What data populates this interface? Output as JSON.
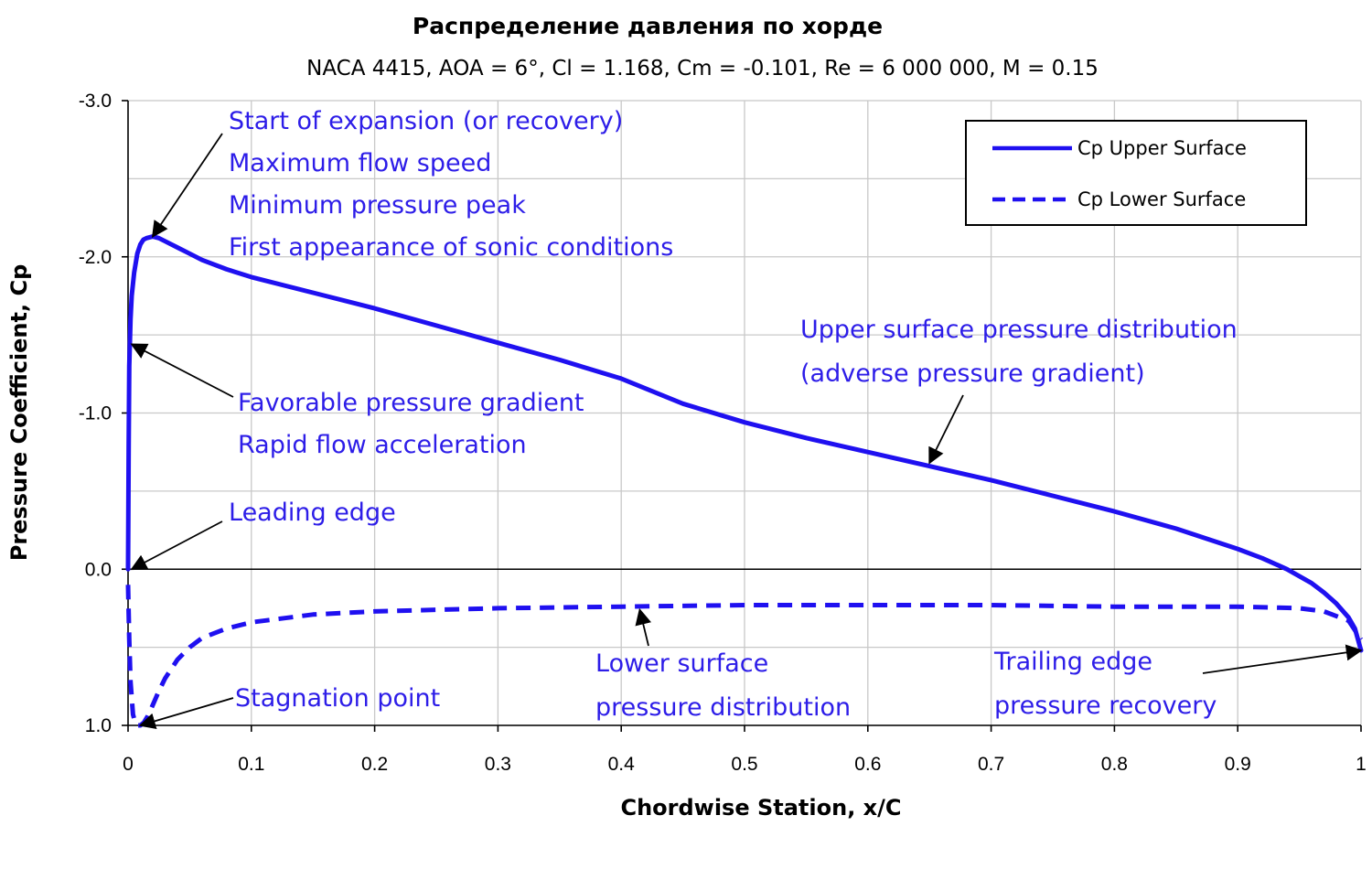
{
  "colors": {
    "series": "#1f10f0",
    "annotation_text": "#2d1de8",
    "grid": "#c8c8c8",
    "axis": "#000000"
  },
  "chart_data": {
    "type": "line",
    "title": "Распределение давления по хорде",
    "subtitle": "NACA 4415, AOA = 6°, Cl = 1.168,  Cm = -0.101,  Re = 6 000  000,  M = 0.15",
    "xlabel": "Chordwise Station, x/C",
    "ylabel": "Pressure Coefficient, Cp",
    "xlim": [
      0,
      1
    ],
    "ylim": [
      1.0,
      -3.0
    ],
    "y_inverted": true,
    "grid": true,
    "x_ticks": [
      "0",
      "0.1",
      "0.2",
      "0.3",
      "0.4",
      "0.5",
      "0.6",
      "0.7",
      "0.8",
      "0.9",
      "1"
    ],
    "y_ticks": [
      "-3.0",
      "-2.0",
      "-1.0",
      "0.0",
      "1.0"
    ],
    "legend_position": "top-right",
    "series": [
      {
        "name": "Cp Upper Surface",
        "style": "solid",
        "x": [
          0.0,
          0.0005,
          0.001,
          0.002,
          0.003,
          0.005,
          0.0075,
          0.01,
          0.0125,
          0.015,
          0.02,
          0.025,
          0.03,
          0.04,
          0.05,
          0.06,
          0.08,
          0.1,
          0.15,
          0.2,
          0.25,
          0.3,
          0.35,
          0.4,
          0.45,
          0.5,
          0.55,
          0.6,
          0.65,
          0.7,
          0.75,
          0.8,
          0.85,
          0.9,
          0.92,
          0.94,
          0.96,
          0.97,
          0.98,
          0.99,
          0.995,
          1.0
        ],
        "y": [
          0.0,
          -0.8,
          -1.3,
          -1.6,
          -1.75,
          -1.9,
          -2.02,
          -2.08,
          -2.11,
          -2.12,
          -2.13,
          -2.12,
          -2.1,
          -2.06,
          -2.02,
          -1.98,
          -1.92,
          -1.87,
          -1.77,
          -1.67,
          -1.56,
          -1.45,
          -1.34,
          -1.22,
          -1.06,
          -0.94,
          -0.84,
          -0.75,
          -0.66,
          -0.57,
          -0.47,
          -0.37,
          -0.26,
          -0.13,
          -0.07,
          0.0,
          0.09,
          0.15,
          0.22,
          0.31,
          0.38,
          0.52
        ]
      },
      {
        "name": "Cp Lower Surface",
        "style": "dashed",
        "x": [
          0.0,
          0.001,
          0.002,
          0.004,
          0.006,
          0.008,
          0.01,
          0.013,
          0.016,
          0.02,
          0.025,
          0.03,
          0.04,
          0.05,
          0.06,
          0.08,
          0.1,
          0.15,
          0.2,
          0.3,
          0.4,
          0.5,
          0.6,
          0.7,
          0.8,
          0.9,
          0.95,
          0.97,
          0.99,
          1.0
        ],
        "y": [
          0.1,
          0.45,
          0.72,
          0.93,
          0.99,
          1.0,
          1.0,
          0.98,
          0.94,
          0.87,
          0.78,
          0.7,
          0.58,
          0.5,
          0.44,
          0.38,
          0.34,
          0.29,
          0.27,
          0.25,
          0.24,
          0.23,
          0.23,
          0.23,
          0.24,
          0.24,
          0.25,
          0.27,
          0.33,
          0.45
        ]
      }
    ],
    "annotations": [
      {
        "lines": [
          "Start of expansion (or recovery)",
          "Maximum flow speed",
          "Minimum pressure peak",
          "First appearance of sonic conditions"
        ],
        "target_x": 0.02,
        "target_y": -2.13
      },
      {
        "lines": [
          "Favorable pressure gradient",
          "Rapid flow acceleration"
        ],
        "target_x": 0.003,
        "target_y": -1.44
      },
      {
        "lines": [
          "Leading edge"
        ],
        "target_x": 0.003,
        "target_y": 0.0
      },
      {
        "lines": [
          "Stagnation point"
        ],
        "target_x": 0.01,
        "target_y": 1.0
      },
      {
        "lines": [
          "Upper surface pressure distribution",
          "(adverse pressure gradient)"
        ],
        "target_x": 0.65,
        "target_y": -0.68
      },
      {
        "lines": [
          "Lower surface",
          "pressure distribution"
        ],
        "target_x": 0.415,
        "target_y": 0.26
      },
      {
        "lines": [
          "Trailing edge",
          "pressure recovery"
        ],
        "target_x": 1.0,
        "target_y": 0.52
      }
    ]
  }
}
